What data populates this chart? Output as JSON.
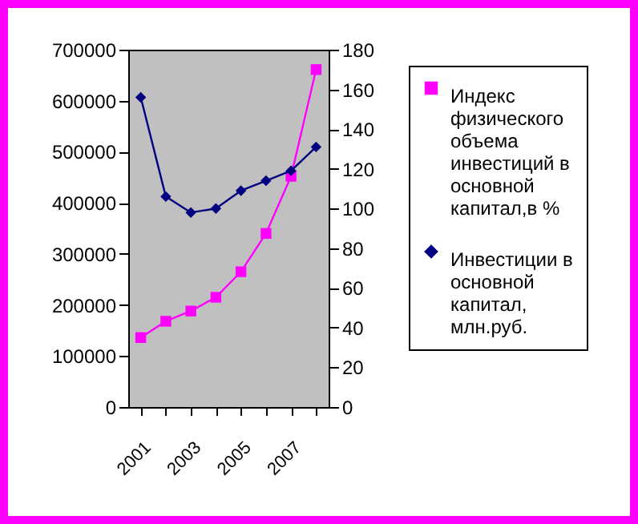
{
  "chart_data": {
    "type": "line",
    "categories": [
      "2001",
      null,
      "2003",
      null,
      "2005",
      null,
      "2007",
      null
    ],
    "series": [
      {
        "name": "Индекс физического объема инвестиций в основной капитал,в %",
        "color": "#ff00ff",
        "marker": "square",
        "values": [
          136000,
          168000,
          188000,
          215000,
          265000,
          340000,
          452000,
          661000
        ]
      },
      {
        "name": "Инвестиции в основной капитал, млн.руб.",
        "color": "#000080",
        "marker": "diamond",
        "axis": "y2",
        "values": [
          156,
          106,
          98,
          100,
          109,
          114,
          119,
          131
        ]
      }
    ],
    "ylim": [
      0,
      700000
    ],
    "yticks": [
      0,
      100000,
      200000,
      300000,
      400000,
      500000,
      600000,
      700000
    ],
    "y2lim": [
      0,
      180
    ],
    "y2ticks": [
      0,
      20,
      40,
      60,
      80,
      100,
      120,
      140,
      160,
      180
    ],
    "grid": false,
    "legend": "right"
  }
}
